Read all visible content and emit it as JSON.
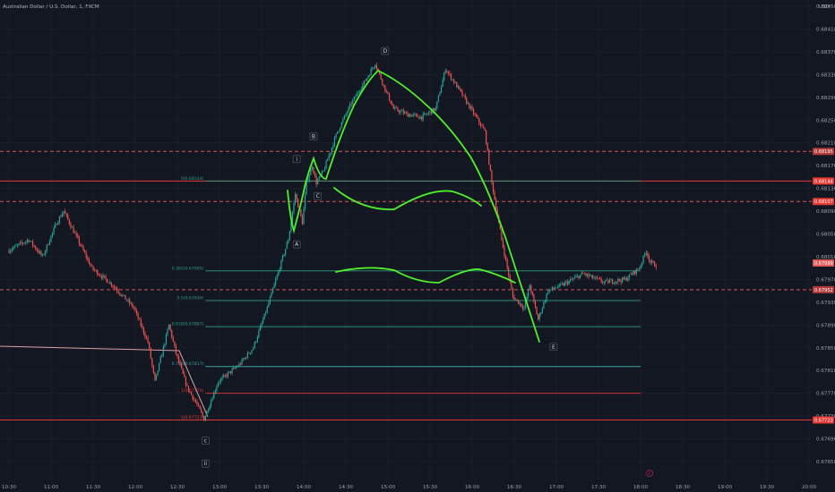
{
  "header": {
    "title": "Australian Dollar / U.S. Dollar, 1, FXCM"
  },
  "currency": "USD",
  "colors": {
    "background": "#131722",
    "grid": "#1e222d",
    "up": "#26a69a",
    "down": "#ef5350",
    "hline_red": "#e53935",
    "dashed_red": "#d3565a",
    "fib_green": "#2e9e7e",
    "drawing_green": "#4ef02c",
    "salmon": "#d9a0a0"
  },
  "chart_data": {
    "type": "candlestick",
    "y_axis": {
      "range": [
        0.6763,
        0.6846
      ],
      "tick_labels": [
        "0.68450",
        "0.68410",
        "0.68370",
        "0.68330",
        "0.68290",
        "0.68250",
        "0.68210",
        "0.68170",
        "0.68130",
        "0.68090",
        "0.68050",
        "0.68010",
        "0.67970",
        "0.67930",
        "0.67890",
        "0.67850",
        "0.67810",
        "0.67770",
        "0.67730",
        "0.67690",
        "0.67650"
      ]
    },
    "x_axis": {
      "tick_labels": [
        "10:30",
        "11:00",
        "11:30",
        "12:00",
        "12:30",
        "13:00",
        "13:30",
        "14:00",
        "14:30",
        "15:00",
        "15:30",
        "16:00",
        "16:30",
        "17:00",
        "17:30",
        "18:00",
        "18:30",
        "19:00",
        "19:30",
        "20:00"
      ]
    },
    "price_path": [
      {
        "t": "10:30",
        "p": 0.6802
      },
      {
        "t": "10:45",
        "p": 0.6804
      },
      {
        "t": "10:55",
        "p": 0.6801
      },
      {
        "t": "11:05",
        "p": 0.6807
      },
      {
        "t": "11:10",
        "p": 0.6809
      },
      {
        "t": "11:20",
        "p": 0.6804
      },
      {
        "t": "11:30",
        "p": 0.6799
      },
      {
        "t": "11:45",
        "p": 0.6796
      },
      {
        "t": "12:00",
        "p": 0.6792
      },
      {
        "t": "12:10",
        "p": 0.6786
      },
      {
        "t": "12:15",
        "p": 0.6779
      },
      {
        "t": "12:20",
        "p": 0.6784
      },
      {
        "t": "12:25",
        "p": 0.6789
      },
      {
        "t": "12:30",
        "p": 0.6784
      },
      {
        "t": "12:38",
        "p": 0.6778
      },
      {
        "t": "12:45",
        "p": 0.6775
      },
      {
        "t": "12:50",
        "p": 0.67725
      },
      {
        "t": "13:00",
        "p": 0.6779
      },
      {
        "t": "13:15",
        "p": 0.6782
      },
      {
        "t": "13:25",
        "p": 0.6785
      },
      {
        "t": "13:35",
        "p": 0.6792
      },
      {
        "t": "13:45",
        "p": 0.68
      },
      {
        "t": "13:50",
        "p": 0.6804
      },
      {
        "t": "13:55",
        "p": 0.6812
      },
      {
        "t": "14:00",
        "p": 0.6807
      },
      {
        "t": "14:03",
        "p": 0.6814
      },
      {
        "t": "14:07",
        "p": 0.6817
      },
      {
        "t": "14:10",
        "p": 0.6814
      },
      {
        "t": "14:15",
        "p": 0.6816
      },
      {
        "t": "14:25",
        "p": 0.6823
      },
      {
        "t": "14:35",
        "p": 0.6828
      },
      {
        "t": "14:45",
        "p": 0.6832
      },
      {
        "t": "14:52",
        "p": 0.6835
      },
      {
        "t": "14:58",
        "p": 0.6831
      },
      {
        "t": "15:05",
        "p": 0.6827
      },
      {
        "t": "15:15",
        "p": 0.6826
      },
      {
        "t": "15:25",
        "p": 0.68255
      },
      {
        "t": "15:35",
        "p": 0.6827
      },
      {
        "t": "15:42",
        "p": 0.6834
      },
      {
        "t": "15:50",
        "p": 0.6831
      },
      {
        "t": "16:00",
        "p": 0.6827
      },
      {
        "t": "16:10",
        "p": 0.6823
      },
      {
        "t": "16:15",
        "p": 0.6814
      },
      {
        "t": "16:22",
        "p": 0.6804
      },
      {
        "t": "16:30",
        "p": 0.6794
      },
      {
        "t": "16:38",
        "p": 0.6792
      },
      {
        "t": "16:42",
        "p": 0.6796
      },
      {
        "t": "16:48",
        "p": 0.679
      },
      {
        "t": "16:55",
        "p": 0.6795
      },
      {
        "t": "17:05",
        "p": 0.6796
      },
      {
        "t": "17:20",
        "p": 0.6798
      },
      {
        "t": "17:35",
        "p": 0.67965
      },
      {
        "t": "17:50",
        "p": 0.6797
      },
      {
        "t": "18:00",
        "p": 0.6799
      },
      {
        "t": "18:05",
        "p": 0.6802
      },
      {
        "t": "18:08",
        "p": 0.68
      },
      {
        "t": "18:12",
        "p": 0.67995
      }
    ],
    "horizontal_lines": [
      {
        "price": 0.68195,
        "style": "dashed",
        "color": "dashed_red",
        "label": ""
      },
      {
        "price": 0.68143,
        "style": "solid",
        "color": "hline_red",
        "label": "0.68144"
      },
      {
        "price": 0.68107,
        "style": "dashed",
        "color": "dashed_red",
        "label": "0.68107"
      },
      {
        "price": 0.67952,
        "style": "dashed",
        "color": "dashed_red",
        "label": ""
      },
      {
        "price": 0.67723,
        "style": "solid",
        "color": "hline_red",
        "label": "0.67723"
      }
    ],
    "fib_levels": [
      {
        "price": 0.68143,
        "label": "0(0.68144)",
        "color": "#2e9e7e",
        "from": "12:50",
        "to": "18:00"
      },
      {
        "price": 0.67985,
        "label": "0.382(0.67985)",
        "color": "#2e9e7e",
        "from": "12:50",
        "to": "18:00"
      },
      {
        "price": 0.67933,
        "label": "0.5(0.67934)",
        "color": "#2e9e7e",
        "from": "12:50",
        "to": "18:00"
      },
      {
        "price": 0.67887,
        "label": "0.618(0.67887)",
        "color": "#2e9e7e",
        "from": "12:50",
        "to": "18:00"
      },
      {
        "price": 0.67817,
        "label": "0.786(0.67817)",
        "color": "#3aa0a8",
        "from": "12:50",
        "to": "18:00"
      },
      {
        "price": 0.6777,
        "label": "1(0.67770)",
        "color": "#e53935",
        "from": "12:50",
        "to": "18:00"
      },
      {
        "price": 0.67723,
        "label": "1(0.67723)",
        "color": "#e53935",
        "from": "12:50",
        "to": "18:00"
      }
    ],
    "wave_labels": [
      {
        "text": "ii",
        "t": "12:50",
        "p": 0.67645
      },
      {
        "text": "c",
        "t": "12:50",
        "p": 0.67685
      },
      {
        "text": "A",
        "t": "13:55",
        "p": 0.6803
      },
      {
        "text": "i",
        "t": "13:55",
        "p": 0.6818
      },
      {
        "text": "B",
        "t": "14:07",
        "p": 0.6822
      },
      {
        "text": "C",
        "t": "14:10",
        "p": 0.68115
      },
      {
        "text": "D",
        "t": "14:58",
        "p": 0.6837
      },
      {
        "text": "E",
        "t": "16:58",
        "p": 0.6785
      }
    ],
    "price_tags": [
      {
        "price": 0.68195,
        "text": "0.68195",
        "color": "#b23a3a"
      },
      {
        "price": 0.68143,
        "text": "0.68144",
        "color": "#e53935"
      },
      {
        "price": 0.68107,
        "text": "0.68107",
        "color": "#e53935"
      },
      {
        "price": 0.67999,
        "text": "0.67999",
        "color": "#e05a5a"
      },
      {
        "price": 0.67952,
        "text": "0.67952",
        "color": "#b23a3a"
      },
      {
        "price": 0.67723,
        "text": "0.67723",
        "color": "#e53935"
      }
    ],
    "current_price": 0.67999
  }
}
